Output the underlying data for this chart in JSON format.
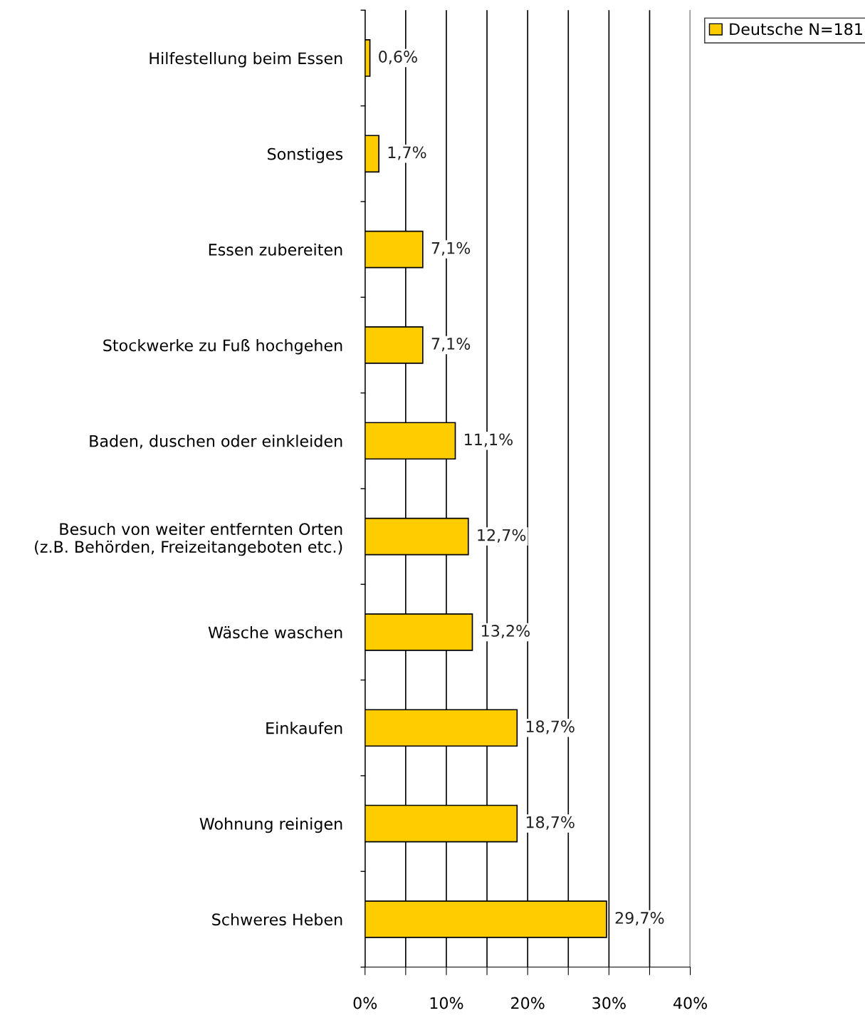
{
  "chart_data": {
    "type": "bar",
    "orientation": "horizontal",
    "categories": [
      "Hilfestellung beim Essen",
      "Sonstiges",
      "Essen zubereiten",
      "Stockwerke zu Fuß hochgehen",
      "Baden, duschen oder einkleiden",
      "Besuch von weiter entfernten Orten\n(z.B. Behörden, Freizeitangeboten etc.)",
      "Wäsche waschen",
      "Einkaufen",
      "Wohnung reinigen",
      "Schweres Heben"
    ],
    "series": [
      {
        "name": "Deutsche N=181",
        "color": "#ffcc00",
        "values": [
          0.6,
          1.7,
          7.1,
          7.1,
          11.1,
          12.7,
          13.2,
          18.7,
          18.7,
          29.7
        ],
        "value_labels": [
          "0,6%",
          "1,7%",
          "7,1%",
          "7,1%",
          "11,1%",
          "12,7%",
          "13,2%",
          "18,7%",
          "18,7%",
          "29,7%"
        ]
      }
    ],
    "xlim": [
      0,
      40
    ],
    "xticks": [
      {
        "value": 0,
        "label": "0%"
      },
      {
        "value": 5,
        "label": null
      },
      {
        "value": 10,
        "label": "10%"
      },
      {
        "value": 15,
        "label": null
      },
      {
        "value": 20,
        "label": "20%"
      },
      {
        "value": 25,
        "label": null
      },
      {
        "value": 30,
        "label": "30%"
      },
      {
        "value": 35,
        "label": null
      },
      {
        "value": 40,
        "label": "40%"
      }
    ],
    "grid": "x",
    "legend": "top right"
  }
}
